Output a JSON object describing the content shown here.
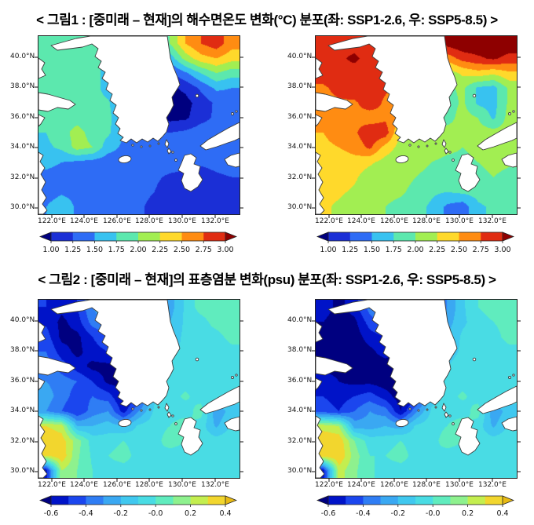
{
  "figure1": {
    "title": "< 그림1 : [중미래 – 현재]의 해수면온도 변화(°C) 분포(좌: SSP1-2.6, 우: SSP5-8.5) >"
  },
  "figure2": {
    "title": "< 그림2 : [중미래 – 현재]의 표층염분 변화(psu) 분포(좌: SSP1-2.6, 우: SSP5-8.5) >"
  },
  "axes": {
    "lat_tick_labels": [
      "40.0°N",
      "38.0°N",
      "36.0°N",
      "34.0°N",
      "32.0°N",
      "30.0°N"
    ],
    "lon_tick_labels": [
      "122.0°E",
      "124.0°E",
      "126.0°E",
      "128.0°E",
      "130.0°E",
      "132.0°E"
    ]
  },
  "colormaps": {
    "temperature": {
      "thresholds": [
        1.0,
        1.25,
        1.5,
        1.75,
        2.0,
        2.25,
        2.5,
        2.75,
        3.0
      ],
      "colors": [
        "#00007f",
        "#1b2fd6",
        "#2e6cf5",
        "#38c2f0",
        "#5ce8ae",
        "#a2ee52",
        "#ffd92b",
        "#ff8c12",
        "#e02c12",
        "#8e0000"
      ]
    },
    "salinity": {
      "thresholds": [
        -0.6,
        -0.5,
        -0.4,
        -0.3,
        -0.2,
        -0.1,
        0.0,
        0.1,
        0.2,
        0.3,
        0.4
      ],
      "colors": [
        "#000080",
        "#0013c8",
        "#1b46ee",
        "#2f7df4",
        "#3aa8f2",
        "#40c8ef",
        "#49dce4",
        "#60ecbe",
        "#8ef18e",
        "#c4ee4f",
        "#f2d62e",
        "#e8ba14"
      ]
    }
  },
  "chart_data": [
    {
      "type": "heatmap",
      "figure": "그림1",
      "variable": "해수면온도 변화(°C), 중미래 - 현재",
      "scenario": "SSP1-2.6",
      "lon_range": [
        121.2,
        133.5
      ],
      "lat_range": [
        29.6,
        41.4
      ],
      "colormap": "temperature",
      "colorbar": {
        "tick_labels": [
          "1.00",
          "1.25",
          "1.50",
          "1.75",
          "2.00",
          "2.25",
          "2.50",
          "2.75",
          "3.00"
        ],
        "tick_positions": [
          0,
          0.125,
          0.25,
          0.375,
          0.5,
          0.625,
          0.75,
          0.875,
          1
        ]
      },
      "grid": [
        [
          1.9,
          1.9,
          1.9,
          1.9,
          1.6,
          1.3,
          1.2,
          1.2,
          2.0,
          2.5,
          2.75,
          2.9,
          2.6
        ],
        [
          1.85,
          1.9,
          1.9,
          1.9,
          1.6,
          1.2,
          1.1,
          1.1,
          1.6,
          2.1,
          2.4,
          2.5,
          2.35
        ],
        [
          1.8,
          1.85,
          1.9,
          1.9,
          1.6,
          1.2,
          1.1,
          1.05,
          1.2,
          1.45,
          1.75,
          2.0,
          1.85
        ],
        [
          1.8,
          1.9,
          2.0,
          1.9,
          1.6,
          1.3,
          1.1,
          1.0,
          0.95,
          1.05,
          1.3,
          1.55,
          1.5
        ],
        [
          1.8,
          1.9,
          1.9,
          1.85,
          1.8,
          1.4,
          1.1,
          1.0,
          0.9,
          0.92,
          1.1,
          1.3,
          1.35
        ],
        [
          1.8,
          1.85,
          1.9,
          1.8,
          1.8,
          1.6,
          1.2,
          1.05,
          0.92,
          0.95,
          1.15,
          1.3,
          1.35
        ],
        [
          1.75,
          1.9,
          2.1,
          1.9,
          1.8,
          1.5,
          1.4,
          1.3,
          1.25,
          1.3,
          1.4,
          1.4,
          1.4
        ],
        [
          1.7,
          1.8,
          2.1,
          2.0,
          1.6,
          1.45,
          1.5,
          1.4,
          1.35,
          1.4,
          1.45,
          1.4,
          1.4
        ],
        [
          1.6,
          1.5,
          1.45,
          1.4,
          1.35,
          1.4,
          1.3,
          1.4,
          1.4,
          1.35,
          1.3,
          1.35,
          1.4
        ],
        [
          1.4,
          1.35,
          1.4,
          1.45,
          1.4,
          1.35,
          1.4,
          1.3,
          1.2,
          1.15,
          1.1,
          1.2,
          1.25
        ],
        [
          1.35,
          1.45,
          1.4,
          1.4,
          1.45,
          1.4,
          1.35,
          1.25,
          1.1,
          1.05,
          1.1,
          1.15,
          1.2
        ],
        [
          1.5,
          1.7,
          1.45,
          1.4,
          1.4,
          1.35,
          1.3,
          1.15,
          1.05,
          1.0,
          1.05,
          1.1,
          1.15
        ]
      ]
    },
    {
      "type": "heatmap",
      "figure": "그림1",
      "variable": "해수면온도 변화(°C), 중미래 - 현재",
      "scenario": "SSP5-8.5",
      "lon_range": [
        121.2,
        133.5
      ],
      "lat_range": [
        29.6,
        41.4
      ],
      "colormap": "temperature",
      "colorbar": {
        "tick_labels": [
          "1.00",
          "1.25",
          "1.50",
          "1.75",
          "2.00",
          "2.25",
          "2.50",
          "2.75",
          "3.00"
        ],
        "tick_positions": [
          0,
          0.125,
          0.25,
          0.375,
          0.5,
          0.625,
          0.75,
          0.875,
          1
        ]
      },
      "grid": [
        [
          2.9,
          2.95,
          2.9,
          2.85,
          2.9,
          2.85,
          2.6,
          2.6,
          3.1,
          3.2,
          3.2,
          3.2,
          3.2
        ],
        [
          2.9,
          2.95,
          3.05,
          2.9,
          2.8,
          2.7,
          2.3,
          2.3,
          2.6,
          2.85,
          2.95,
          3.05,
          2.9
        ],
        [
          2.9,
          2.95,
          2.9,
          2.85,
          2.8,
          2.6,
          2.2,
          2.0,
          2.1,
          2.3,
          2.4,
          2.3,
          2.45
        ],
        [
          2.7,
          2.85,
          2.95,
          2.9,
          2.8,
          2.6,
          2.1,
          1.9,
          1.95,
          2.05,
          1.7,
          1.65,
          2.05
        ],
        [
          2.65,
          2.7,
          2.7,
          2.9,
          2.7,
          2.6,
          2.2,
          1.95,
          1.85,
          2.05,
          1.7,
          1.65,
          2.05
        ],
        [
          2.6,
          2.65,
          2.7,
          2.6,
          2.7,
          2.5,
          2.15,
          1.9,
          1.9,
          2.1,
          2.0,
          1.7,
          2.1
        ],
        [
          2.5,
          2.6,
          2.7,
          2.95,
          2.9,
          2.2,
          2.05,
          1.85,
          2.1,
          2.05,
          2.1,
          2.1,
          2.1
        ],
        [
          2.45,
          2.5,
          2.6,
          2.8,
          2.4,
          2.15,
          2.1,
          2.2,
          2.1,
          2.0,
          2.1,
          2.05,
          2.1
        ],
        [
          2.4,
          2.35,
          2.4,
          2.3,
          2.15,
          2.05,
          2.1,
          2.0,
          1.9,
          1.9,
          2.0,
          2.1,
          2.05
        ],
        [
          2.35,
          2.4,
          2.3,
          2.1,
          2.05,
          2.1,
          2.0,
          1.9,
          1.8,
          1.85,
          1.9,
          2.0,
          1.9
        ],
        [
          2.35,
          2.3,
          2.2,
          2.1,
          2.1,
          2.05,
          1.9,
          1.8,
          1.75,
          1.8,
          1.85,
          1.9,
          1.85
        ],
        [
          2.3,
          2.2,
          2.1,
          2.05,
          2.0,
          1.9,
          1.85,
          1.7,
          1.45,
          1.35,
          1.7,
          1.8,
          1.8
        ]
      ]
    },
    {
      "type": "heatmap",
      "figure": "그림2",
      "variable": "표층염분 변화(psu), 중미래 - 현재",
      "scenario": "SSP1-2.6",
      "lon_range": [
        121.2,
        133.5
      ],
      "lat_range": [
        29.6,
        41.4
      ],
      "colormap": "salinity",
      "colorbar": {
        "tick_labels": [
          "-0.6",
          "-0.4",
          "-0.2",
          "-0.0",
          "0.2",
          "0.4"
        ],
        "tick_positions": [
          0,
          0.2,
          0.4,
          0.6,
          0.8,
          1
        ]
      },
      "grid": [
        [
          -0.5,
          -0.57,
          -0.5,
          -0.3,
          -0.2,
          -0.35,
          -0.5,
          -0.45,
          -0.25,
          -0.08,
          0.05,
          0.08,
          0.05
        ],
        [
          -0.52,
          -0.63,
          -0.55,
          -0.35,
          -0.3,
          -0.45,
          -0.55,
          -0.4,
          -0.2,
          -0.08,
          -0.05,
          0.05,
          0.08
        ],
        [
          -0.45,
          -0.63,
          -0.63,
          -0.5,
          -0.4,
          -0.5,
          -0.63,
          -0.35,
          -0.15,
          -0.08,
          -0.05,
          -0.05,
          0.05
        ],
        [
          -0.4,
          -0.55,
          -0.63,
          -0.55,
          -0.5,
          -0.55,
          -0.63,
          -0.3,
          -0.12,
          -0.08,
          -0.05,
          -0.08,
          -0.05
        ],
        [
          -0.35,
          -0.45,
          -0.55,
          -0.63,
          -0.63,
          -0.63,
          -0.45,
          -0.18,
          -0.08,
          -0.05,
          -0.05,
          -0.1,
          -0.05
        ],
        [
          -0.3,
          -0.35,
          -0.4,
          -0.5,
          -0.63,
          -0.63,
          -0.35,
          -0.1,
          -0.05,
          -0.04,
          -0.05,
          -0.1,
          -0.05
        ],
        [
          -0.25,
          -0.35,
          -0.45,
          -0.4,
          -0.45,
          -0.63,
          -0.5,
          -0.12,
          -0.04,
          0.02,
          -0.05,
          -0.05,
          -0.04
        ],
        [
          -0.3,
          -0.4,
          -0.5,
          -0.35,
          -0.3,
          -0.55,
          -0.3,
          -0.08,
          -0.04,
          -0.05,
          0.05,
          -0.28,
          -0.15
        ],
        [
          0.3,
          0.25,
          -0.2,
          -0.2,
          -0.15,
          -0.2,
          -0.08,
          -0.04,
          0.0,
          0.06,
          -0.05,
          -0.22,
          -0.08
        ],
        [
          0.38,
          0.35,
          0.15,
          -0.05,
          -0.05,
          0.0,
          -0.05,
          -0.04,
          0.05,
          0.0,
          -0.05,
          -0.05,
          -0.04
        ],
        [
          0.3,
          0.38,
          0.12,
          -0.02,
          0.0,
          0.05,
          -0.05,
          0.0,
          -0.05,
          -0.04,
          -0.05,
          -0.05,
          -0.04
        ],
        [
          -0.55,
          0.2,
          0.1,
          0.0,
          -0.05,
          -0.05,
          -0.04,
          -0.05,
          -0.04,
          -0.05,
          -0.05,
          0.0,
          0.0
        ]
      ]
    },
    {
      "type": "heatmap",
      "figure": "그림2",
      "variable": "표층염분 변화(psu), 중미래 - 현재",
      "scenario": "SSP5-8.5",
      "lon_range": [
        121.2,
        133.5
      ],
      "lat_range": [
        29.6,
        41.4
      ],
      "colormap": "salinity",
      "colorbar": {
        "tick_labels": [
          "-0.6",
          "-0.4",
          "-0.2",
          "-0.0",
          "0.2",
          "0.4"
        ],
        "tick_positions": [
          0,
          0.2,
          0.4,
          0.6,
          0.8,
          1
        ]
      },
      "grid": [
        [
          -0.55,
          -0.63,
          -0.55,
          -0.35,
          -0.25,
          -0.4,
          -0.55,
          -0.5,
          -0.3,
          -0.12,
          0.0,
          0.05,
          0.08
        ],
        [
          -0.6,
          -0.66,
          -0.63,
          -0.45,
          -0.35,
          -0.5,
          -0.63,
          -0.45,
          -0.25,
          -0.12,
          -0.05,
          0.0,
          0.05
        ],
        [
          -0.63,
          -0.66,
          -0.66,
          -0.55,
          -0.5,
          -0.55,
          -0.66,
          -0.4,
          -0.2,
          -0.08,
          -0.05,
          -0.05,
          0.05
        ],
        [
          -0.63,
          -0.66,
          -0.66,
          -0.63,
          -0.55,
          -0.63,
          -0.66,
          -0.35,
          -0.15,
          -0.08,
          -0.05,
          -0.08,
          -0.05
        ],
        [
          -0.63,
          -0.63,
          -0.66,
          -0.66,
          -0.66,
          -0.66,
          -0.5,
          -0.2,
          -0.1,
          -0.05,
          -0.05,
          -0.1,
          -0.05
        ],
        [
          -0.55,
          -0.6,
          -0.63,
          -0.63,
          -0.66,
          -0.66,
          -0.4,
          -0.15,
          -0.05,
          -0.04,
          -0.05,
          -0.1,
          -0.05
        ],
        [
          -0.5,
          -0.55,
          -0.5,
          -0.45,
          -0.55,
          -0.66,
          -0.55,
          -0.15,
          -0.04,
          0.02,
          -0.05,
          -0.05,
          -0.04
        ],
        [
          -0.45,
          -0.5,
          -0.4,
          -0.3,
          -0.35,
          -0.6,
          -0.32,
          -0.08,
          -0.04,
          -0.05,
          0.05,
          -0.28,
          -0.15
        ],
        [
          0.25,
          0.2,
          -0.25,
          -0.25,
          -0.2,
          -0.25,
          -0.08,
          -0.04,
          0.0,
          0.06,
          -0.05,
          -0.22,
          -0.08
        ],
        [
          0.4,
          0.38,
          0.1,
          -0.05,
          -0.05,
          0.0,
          -0.05,
          -0.04,
          0.05,
          0.0,
          -0.05,
          -0.05,
          -0.04
        ],
        [
          0.35,
          0.4,
          0.15,
          0.0,
          0.0,
          0.05,
          -0.05,
          0.0,
          -0.05,
          -0.04,
          -0.05,
          -0.05,
          -0.04
        ],
        [
          -0.55,
          0.25,
          0.12,
          0.02,
          -0.05,
          -0.05,
          -0.04,
          -0.05,
          -0.04,
          -0.05,
          -0.05,
          0.0,
          0.0
        ]
      ]
    }
  ]
}
